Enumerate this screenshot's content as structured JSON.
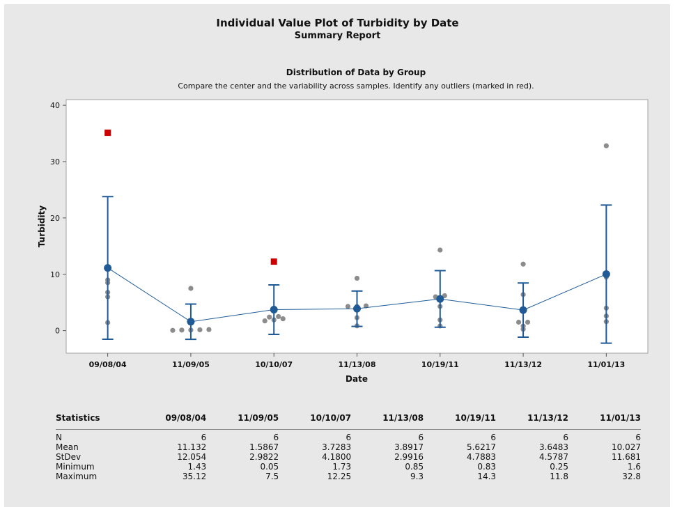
{
  "header": {
    "title": "Individual Value Plot of Turbidity by Date",
    "subtitle": "Summary Report"
  },
  "chart_data": {
    "type": "scatter",
    "title": "Distribution of Data by Group",
    "subtitle": "Compare the center and the variability across samples. Identify any outliers (marked in red).",
    "xlabel": "Date",
    "ylabel": "Turbidity",
    "ylim": [
      -4,
      41
    ],
    "yticks": [
      0,
      10,
      20,
      30,
      40
    ],
    "categories": [
      "09/08/04",
      "11/09/05",
      "10/10/07",
      "11/13/08",
      "10/19/11",
      "11/13/12",
      "11/01/13"
    ],
    "colors": {
      "mean": "#1f5a96",
      "points": "#8c8c8c",
      "outlier": "#cc0000"
    },
    "groups": [
      {
        "category": "09/08/04",
        "points": [
          1.43,
          6.0,
          6.8,
          8.5,
          9.0
        ],
        "outliers": [
          35.12
        ],
        "mean": 11.132,
        "lower": -1.52,
        "upper": 23.78
      },
      {
        "category": "11/09/05",
        "points": [
          0.05,
          0.1,
          0.1,
          0.15,
          0.2,
          7.5
        ],
        "outliers": [],
        "mean": 1.5867,
        "lower": -1.54,
        "upper": 4.72
      },
      {
        "category": "10/10/07",
        "points": [
          1.73,
          1.9,
          2.1,
          2.4,
          2.5
        ],
        "outliers": [
          12.25
        ],
        "mean": 3.7283,
        "lower": -0.66,
        "upper": 8.12
      },
      {
        "category": "11/13/08",
        "points": [
          0.85,
          2.3,
          4.3,
          4.3,
          4.4,
          9.3
        ],
        "outliers": [],
        "mean": 3.8917,
        "lower": 0.75,
        "upper": 7.03
      },
      {
        "category": "10/19/11",
        "points": [
          0.83,
          1.9,
          4.3,
          6.0,
          6.2,
          14.3
        ],
        "outliers": [],
        "mean": 5.6217,
        "lower": 0.6,
        "upper": 10.65
      },
      {
        "category": "11/13/12",
        "points": [
          0.25,
          0.8,
          1.5,
          1.5,
          6.4,
          11.8
        ],
        "outliers": [],
        "mean": 3.6483,
        "lower": -1.15,
        "upper": 8.45
      },
      {
        "category": "11/01/13",
        "points": [
          1.6,
          2.6,
          4.0,
          9.5,
          9.6,
          32.8
        ],
        "outliers": [],
        "mean": 10.027,
        "lower": -2.23,
        "upper": 22.28
      }
    ]
  },
  "stats": {
    "header": "Statistics",
    "columns": [
      "09/08/04",
      "11/09/05",
      "10/10/07",
      "11/13/08",
      "10/19/11",
      "11/13/12",
      "11/01/13"
    ],
    "rows": [
      {
        "label": "N",
        "values": [
          "6",
          "6",
          "6",
          "6",
          "6",
          "6",
          "6"
        ]
      },
      {
        "label": "Mean",
        "values": [
          "11.132",
          "1.5867",
          "3.7283",
          "3.8917",
          "5.6217",
          "3.6483",
          "10.027"
        ]
      },
      {
        "label": "StDev",
        "values": [
          "12.054",
          "2.9822",
          "4.1800",
          "2.9916",
          "4.7883",
          "4.5787",
          "11.681"
        ]
      },
      {
        "label": "Minimum",
        "values": [
          "1.43",
          "0.05",
          "1.73",
          "0.85",
          "0.83",
          "0.25",
          "1.6"
        ]
      },
      {
        "label": "Maximum",
        "values": [
          "35.12",
          "7.5",
          "12.25",
          "9.3",
          "14.3",
          "11.8",
          "32.8"
        ]
      }
    ]
  }
}
